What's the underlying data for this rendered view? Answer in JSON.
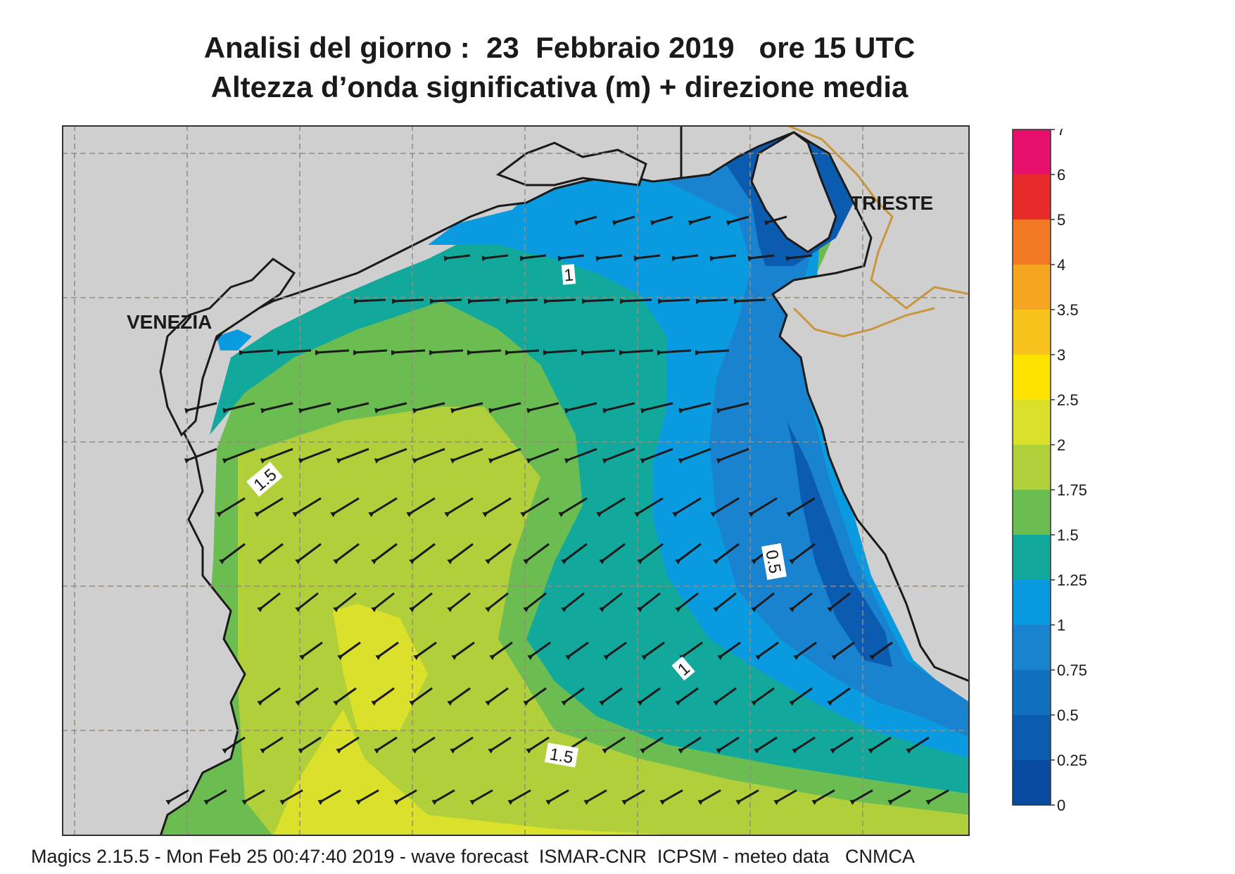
{
  "title_line1": "Analisi del giorno :  23  Febbraio 2019   ore 15 UTC",
  "title_line2": "Altezza d’onda significativa (m) + direzione media",
  "footer": "Magics 2.15.5 - Mon Feb 25 00:47:40 2019 - wave forecast  ISMAR-CNR  ICPSM - meteo data   CNMCA",
  "map": {
    "place_labels": [
      "VENEZIA",
      "TRIESTE"
    ],
    "contour_labels": [
      "1",
      "1.5",
      "0.5",
      "1",
      "1.5"
    ],
    "land_color": "#cfcfcf",
    "wave_direction": "prevalent from east/north-east toward west/south-west"
  },
  "colorbar": {
    "ticks": [
      "7",
      "6",
      "5",
      "4",
      "3.5",
      "3",
      "2.5",
      "2",
      "1.75",
      "1.5",
      "1.25",
      "1",
      "0.75",
      "0.5",
      "0.25",
      "0"
    ],
    "colors": [
      "#e8106a",
      "#e82a2a",
      "#f27a24",
      "#f6a520",
      "#f7c31c",
      "#fde400",
      "#dbe02a",
      "#b1cf3a",
      "#6bbd52",
      "#12a89c",
      "#0a9ae0",
      "#1a83d0",
      "#1170bf",
      "#0b5cb0",
      "#084a9e"
    ]
  }
}
